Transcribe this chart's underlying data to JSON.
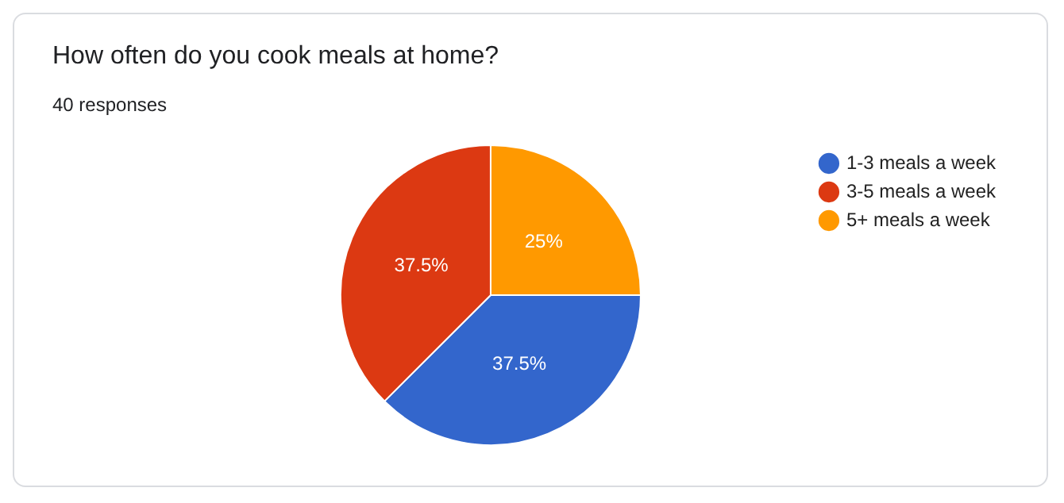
{
  "chart_data": {
    "type": "pie",
    "title": "How often do you cook meals at home?",
    "subtitle": "40 responses",
    "categories": [
      "1-3 meals a week",
      "3-5 meals a week",
      "5+ meals a week"
    ],
    "values": [
      37.5,
      37.5,
      25
    ],
    "colors": [
      "#3366cc",
      "#dc3912",
      "#ff9900"
    ],
    "value_labels": [
      "37.5%",
      "37.5%",
      "25%"
    ],
    "legend": "right"
  }
}
